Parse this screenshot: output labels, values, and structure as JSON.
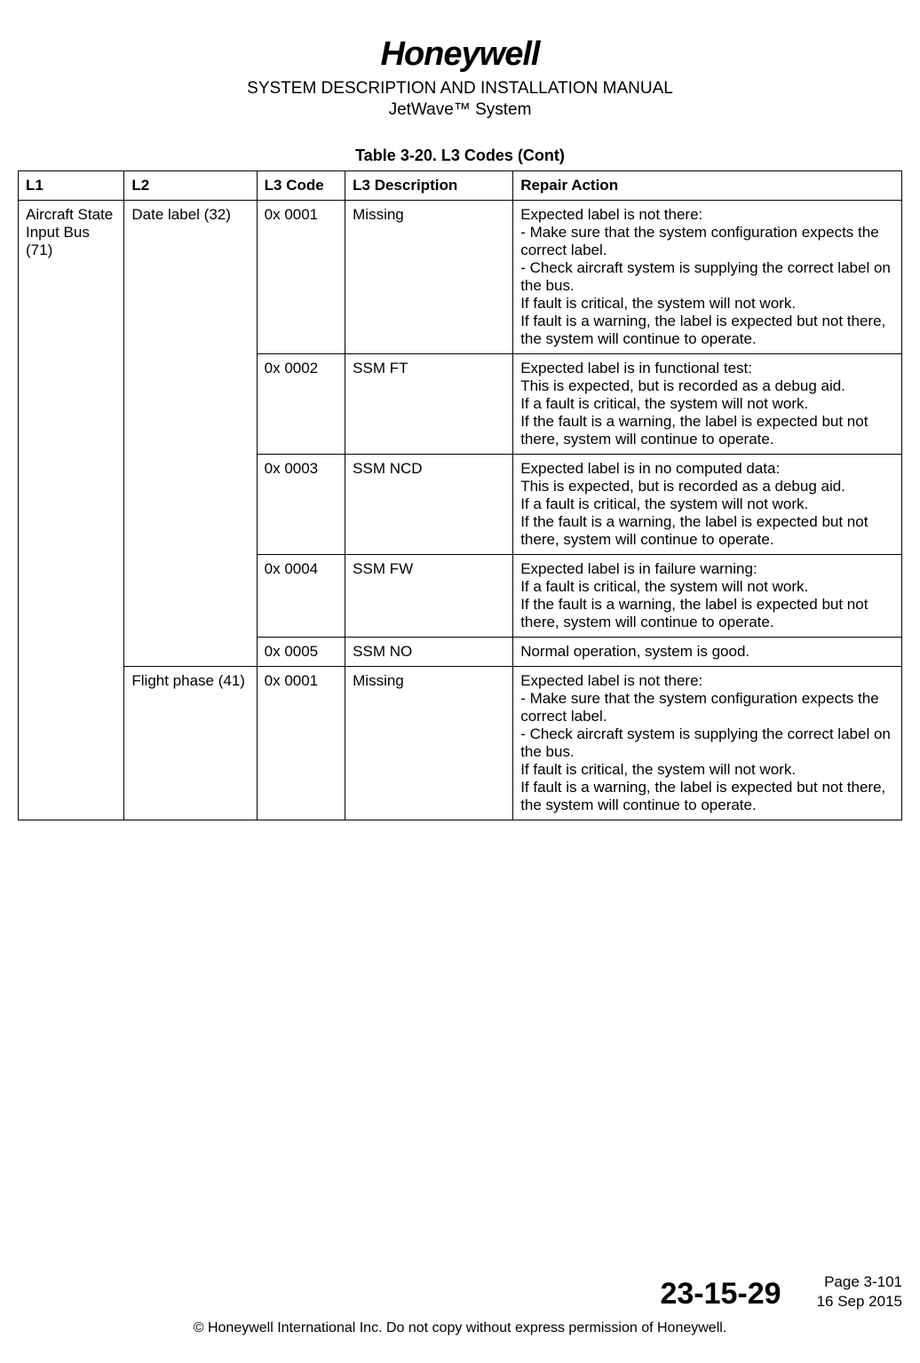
{
  "header": {
    "logo": "Honeywell",
    "title": "SYSTEM DESCRIPTION AND INSTALLATION MANUAL",
    "subtitle": "JetWave™ System"
  },
  "table": {
    "caption": "Table 3-20.  L3 Codes (Cont)",
    "columns": [
      "L1",
      "L2",
      "L3 Code",
      "L3 Description",
      "Repair Action"
    ],
    "rows": [
      {
        "l1": "Aircraft State Input Bus (71)",
        "l2": "Date label (32)",
        "l3code": "0x 0001",
        "l3desc": "Missing",
        "repair": "Expected label is not there:\n- Make sure that the system configuration expects the correct label.\n- Check aircraft system is supplying the correct label on the bus.\nIf fault is critical, the system will not work.\nIf fault is a warning, the label is expected but not there, the system will continue to operate."
      },
      {
        "l3code": "0x 0002",
        "l3desc": "SSM FT",
        "repair": "Expected label is in functional test:\nThis is expected, but is recorded as a debug aid.\nIf a fault is critical, the system will not work.\nIf the fault is a warning, the label is expected but not there, system will continue to operate."
      },
      {
        "l3code": "0x 0003",
        "l3desc": "SSM NCD",
        "repair": "Expected label is in no computed data:\nThis is expected, but is recorded as a debug aid.\nIf a fault is critical, the system will not work.\nIf the fault is a warning, the label is expected but not there, system will continue to operate."
      },
      {
        "l3code": "0x 0004",
        "l3desc": "SSM FW",
        "repair": "Expected label is in failure warning:\nIf a fault is critical, the system will not work.\nIf the fault is a warning, the label is expected but not there, system will continue to operate."
      },
      {
        "l3code": "0x 0005",
        "l3desc": "SSM NO",
        "repair": "Normal operation, system is good."
      },
      {
        "l2": "Flight phase (41)",
        "l3code": "0x 0001",
        "l3desc": "Missing",
        "repair": "Expected label is not there:\n- Make sure that the system configuration expects the correct label.\n- Check aircraft system is supplying the correct label on the bus.\nIf fault is critical, the system will not work.\nIf fault is a warning, the label is expected but not there, the system will continue to operate."
      }
    ]
  },
  "footer": {
    "doc_number": "23-15-29",
    "page": "Page 3-101",
    "date": "16 Sep 2015",
    "copyright": "© Honeywell International Inc. Do not copy without express permission of Honeywell."
  }
}
